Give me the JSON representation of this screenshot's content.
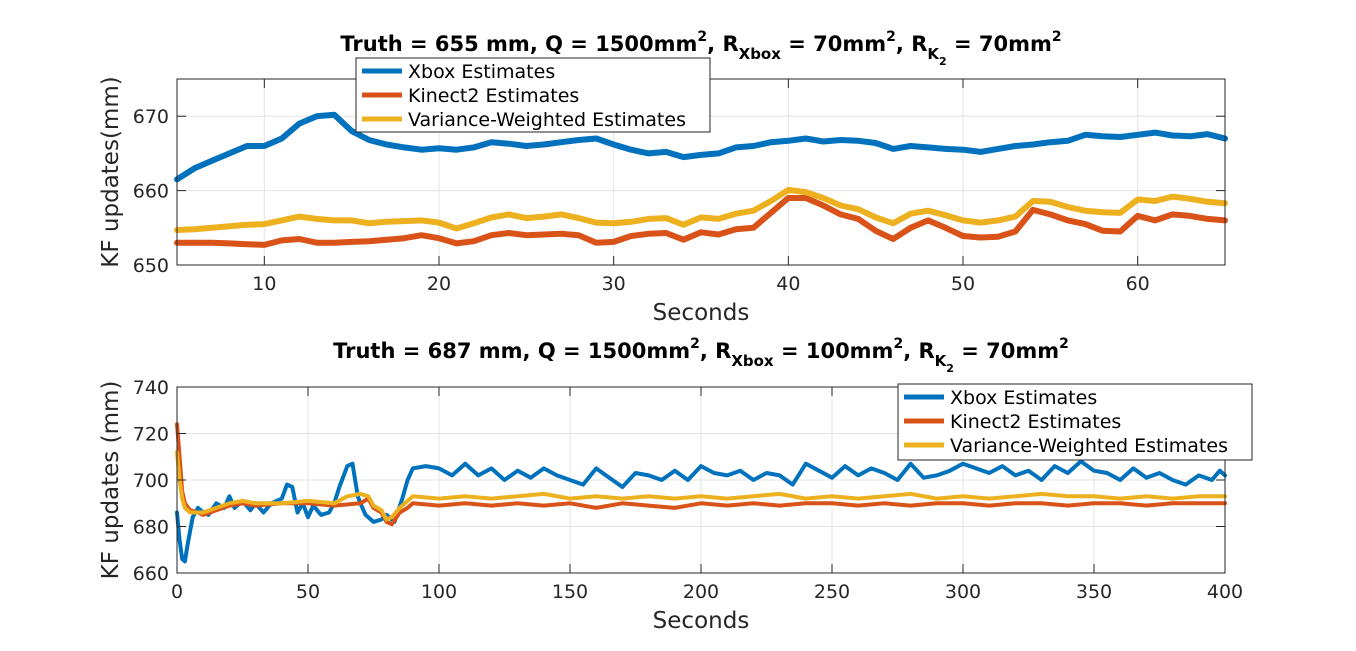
{
  "chart_data": [
    {
      "type": "line",
      "title": {
        "truth": "Truth = 655 mm",
        "q": "Q = 1500mm",
        "r_xbox": "R",
        "r_xbox_sub": "Xbox",
        "r_xbox_val": "= 70mm",
        "r_k": "R",
        "r_k_sub": "K",
        "r_k_subsub": "2",
        "r_k_val": "= 70mm",
        "sup": "2",
        "sep": ","
      },
      "xlabel": "Seconds",
      "ylabel": "KF updates(mm)",
      "xlim": [
        5,
        65
      ],
      "ylim": [
        650,
        675
      ],
      "xticks": [
        10,
        20,
        30,
        40,
        50,
        60
      ],
      "yticks": [
        650,
        660,
        670
      ],
      "grid": true,
      "legend_position": "top-left",
      "series": [
        {
          "name": "Xbox Estimates",
          "color": "#0072BD",
          "x": [
            5,
            6,
            7,
            8,
            9,
            10,
            11,
            12,
            13,
            14,
            15,
            16,
            17,
            18,
            19,
            20,
            21,
            22,
            23,
            24,
            25,
            26,
            27,
            28,
            29,
            30,
            31,
            32,
            33,
            34,
            35,
            36,
            37,
            38,
            39,
            40,
            41,
            42,
            43,
            44,
            45,
            46,
            47,
            48,
            49,
            50,
            51,
            52,
            53,
            54,
            55,
            56,
            57,
            58,
            59,
            60,
            61,
            62,
            63,
            64,
            65
          ],
          "y": [
            661.5,
            663,
            664,
            665,
            666,
            666,
            667,
            669,
            670,
            670.2,
            668,
            666.8,
            666.2,
            665.8,
            665.5,
            665.7,
            665.5,
            665.8,
            666.5,
            666.3,
            666,
            666.2,
            666.5,
            666.8,
            667,
            666.2,
            665.5,
            665,
            665.2,
            664.5,
            664.8,
            665,
            665.8,
            666,
            666.5,
            666.7,
            667,
            666.6,
            666.8,
            666.7,
            666.4,
            665.6,
            666,
            665.8,
            665.6,
            665.5,
            665.2,
            665.6,
            666,
            666.2,
            666.5,
            666.7,
            667.5,
            667.3,
            667.2,
            667.5,
            667.8,
            667.4,
            667.3,
            667.6,
            667
          ]
        },
        {
          "name": "Kinect2 Estimates",
          "color": "#D95319",
          "x": [
            5,
            6,
            7,
            8,
            9,
            10,
            11,
            12,
            13,
            14,
            15,
            16,
            17,
            18,
            19,
            20,
            21,
            22,
            23,
            24,
            25,
            26,
            27,
            28,
            29,
            30,
            31,
            32,
            33,
            34,
            35,
            36,
            37,
            38,
            39,
            40,
            41,
            42,
            43,
            44,
            45,
            46,
            47,
            48,
            49,
            50,
            51,
            52,
            53,
            54,
            55,
            56,
            57,
            58,
            59,
            60,
            61,
            62,
            63,
            64,
            65
          ],
          "y": [
            653,
            653,
            653,
            652.9,
            652.8,
            652.7,
            653.3,
            653.5,
            653,
            653,
            653.1,
            653.2,
            653.4,
            653.6,
            654,
            653.6,
            652.9,
            653.2,
            654,
            654.3,
            654,
            654.1,
            654.2,
            654,
            653,
            653.1,
            653.9,
            654.2,
            654.3,
            653.4,
            654.4,
            654.1,
            654.8,
            655,
            657,
            659,
            659,
            658,
            656.8,
            656.2,
            654.6,
            653.5,
            655,
            656,
            655,
            653.9,
            653.7,
            653.8,
            654.5,
            657.4,
            656.8,
            656,
            655.5,
            654.6,
            654.5,
            656.6,
            656,
            656.8,
            656.6,
            656.2,
            656
          ]
        },
        {
          "name": "Variance-Weighted Estimates",
          "color": "#EDB120",
          "x": [
            5,
            6,
            7,
            8,
            9,
            10,
            11,
            12,
            13,
            14,
            15,
            16,
            17,
            18,
            19,
            20,
            21,
            22,
            23,
            24,
            25,
            26,
            27,
            28,
            29,
            30,
            31,
            32,
            33,
            34,
            35,
            36,
            37,
            38,
            39,
            40,
            41,
            42,
            43,
            44,
            45,
            46,
            47,
            48,
            49,
            50,
            51,
            52,
            53,
            54,
            55,
            56,
            57,
            58,
            59,
            60,
            61,
            62,
            63,
            64,
            65
          ],
          "y": [
            654.7,
            654.8,
            655,
            655.2,
            655.4,
            655.5,
            656,
            656.5,
            656.2,
            656,
            656,
            655.6,
            655.8,
            655.9,
            656,
            655.7,
            654.9,
            655.6,
            656.4,
            656.8,
            656.3,
            656.5,
            656.8,
            656.3,
            655.7,
            655.6,
            655.8,
            656.2,
            656.3,
            655.4,
            656.4,
            656.2,
            656.9,
            657.3,
            658.6,
            660.1,
            659.8,
            659,
            658,
            657.5,
            656.4,
            655.6,
            656.9,
            657.3,
            656.7,
            656,
            655.7,
            656,
            656.5,
            658.6,
            658.5,
            657.8,
            657.3,
            657.1,
            657,
            658.8,
            658.6,
            659.2,
            658.9,
            658.5,
            658.3
          ]
        }
      ]
    },
    {
      "type": "line",
      "title": {
        "truth": "Truth = 687 mm",
        "q": "Q = 1500mm",
        "r_xbox": "R",
        "r_xbox_sub": "Xbox",
        "r_xbox_val": "= 100mm",
        "r_k": "R",
        "r_k_sub": "K",
        "r_k_subsub": "2",
        "r_k_val": "= 70mm",
        "sup": "2",
        "sep": ","
      },
      "xlabel": "Seconds",
      "ylabel": "KF updates (mm)",
      "xlim": [
        0,
        400
      ],
      "ylim": [
        660,
        740
      ],
      "xticks": [
        0,
        50,
        100,
        150,
        200,
        250,
        300,
        350,
        400
      ],
      "yticks": [
        660,
        680,
        700,
        720,
        740
      ],
      "grid": true,
      "legend_position": "top-right",
      "series": [
        {
          "name": "Xbox Estimates",
          "color": "#0072BD",
          "x": [
            0,
            1,
            2,
            3,
            4,
            6,
            8,
            10,
            12,
            15,
            18,
            20,
            22,
            25,
            28,
            30,
            33,
            36,
            40,
            42,
            44,
            46,
            48,
            50,
            52,
            55,
            58,
            60,
            62,
            65,
            67,
            69,
            70,
            72,
            75,
            78,
            80,
            83,
            86,
            88,
            90,
            95,
            100,
            105,
            110,
            115,
            120,
            125,
            130,
            135,
            140,
            145,
            150,
            155,
            160,
            165,
            170,
            175,
            180,
            185,
            190,
            195,
            200,
            205,
            210,
            215,
            220,
            225,
            230,
            235,
            240,
            245,
            250,
            255,
            260,
            265,
            270,
            275,
            280,
            285,
            290,
            295,
            300,
            305,
            310,
            315,
            320,
            325,
            330,
            335,
            340,
            345,
            350,
            355,
            360,
            365,
            370,
            375,
            380,
            385,
            390,
            395,
            398,
            400
          ],
          "y": [
            686,
            674,
            666,
            665,
            672,
            684,
            688,
            686,
            685,
            690,
            688,
            693,
            688,
            691,
            687,
            690,
            686,
            690,
            692,
            698,
            697,
            686,
            690,
            684,
            689,
            685,
            686,
            690,
            697,
            706,
            707,
            693,
            690,
            685,
            682,
            683,
            685,
            682,
            692,
            700,
            705,
            706,
            705,
            702,
            707,
            702,
            705,
            700,
            704,
            701,
            705,
            702,
            700,
            698,
            705,
            701,
            697,
            703,
            702,
            700,
            704,
            700,
            706,
            703,
            702,
            704,
            700,
            703,
            702,
            698,
            707,
            704,
            701,
            706,
            702,
            705,
            703,
            700,
            707,
            701,
            702,
            704,
            707,
            705,
            703,
            706,
            702,
            704,
            700,
            706,
            703,
            708,
            704,
            703,
            700,
            705,
            701,
            703,
            700,
            698,
            702,
            700,
            704,
            702
          ]
        },
        {
          "name": "Kinect2 Estimates",
          "color": "#D95319",
          "x": [
            0,
            1,
            2,
            3,
            5,
            8,
            10,
            15,
            20,
            25,
            30,
            40,
            50,
            60,
            70,
            73,
            75,
            78,
            80,
            82,
            85,
            88,
            90,
            100,
            110,
            120,
            130,
            140,
            150,
            160,
            170,
            180,
            190,
            200,
            210,
            220,
            230,
            240,
            250,
            260,
            270,
            280,
            290,
            300,
            310,
            320,
            330,
            340,
            350,
            360,
            370,
            380,
            390,
            400
          ],
          "y": [
            724,
            710,
            695,
            690,
            687,
            686,
            685,
            687,
            689,
            690,
            689,
            690,
            690,
            689,
            690,
            692,
            688,
            686,
            682,
            681,
            686,
            688,
            690,
            689,
            690,
            689,
            690,
            689,
            690,
            688,
            690,
            689,
            688,
            690,
            689,
            690,
            689,
            690,
            690,
            689,
            690,
            689,
            690,
            690,
            689,
            690,
            690,
            689,
            690,
            690,
            689,
            690,
            690,
            690
          ]
        },
        {
          "name": "Variance-Weighted Estimates",
          "color": "#EDB120",
          "x": [
            0,
            1,
            2,
            3,
            5,
            8,
            10,
            15,
            20,
            25,
            30,
            40,
            50,
            60,
            65,
            70,
            73,
            75,
            78,
            80,
            82,
            85,
            88,
            90,
            100,
            110,
            120,
            130,
            140,
            150,
            160,
            170,
            180,
            190,
            200,
            210,
            220,
            230,
            240,
            250,
            260,
            270,
            280,
            290,
            300,
            310,
            320,
            330,
            340,
            350,
            360,
            370,
            380,
            390,
            400
          ],
          "y": [
            712,
            700,
            692,
            688,
            686,
            686,
            686,
            688,
            690,
            691,
            690,
            690,
            691,
            690,
            693,
            694,
            693,
            689,
            687,
            683,
            684,
            688,
            691,
            693,
            692,
            693,
            692,
            693,
            694,
            692,
            693,
            692,
            693,
            692,
            693,
            692,
            693,
            694,
            692,
            693,
            692,
            693,
            694,
            692,
            693,
            692,
            693,
            694,
            693,
            693,
            692,
            693,
            692,
            693,
            693
          ]
        }
      ]
    }
  ]
}
